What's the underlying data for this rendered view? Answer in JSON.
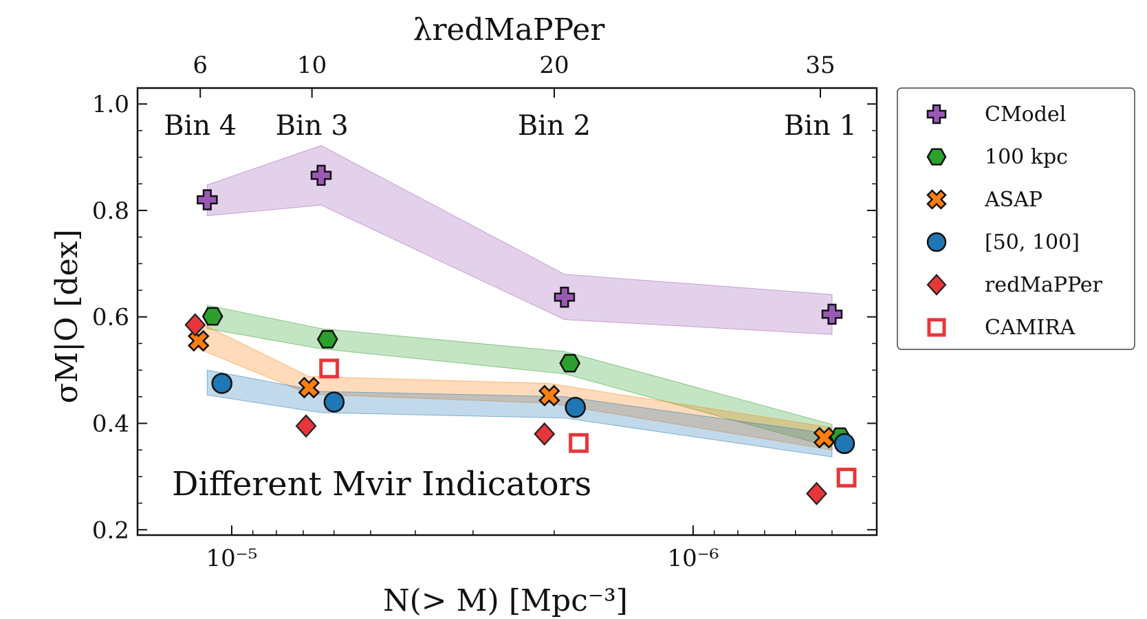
{
  "chart_data": {
    "type": "scatter",
    "x_axis": {
      "label": "N(> M) [Mpc⁻³]",
      "scale": "log",
      "reversed": true,
      "lim": [
        1.6e-05,
        4e-07
      ],
      "major_ticks": [
        {
          "value": 1e-05,
          "label": "10⁻⁵"
        },
        {
          "value": 1e-06,
          "label": "10⁻⁶"
        }
      ]
    },
    "top_axis": {
      "label": "λredMaPPer",
      "ticks": [
        {
          "x": 1.17e-05,
          "label": "6"
        },
        {
          "x": 6.7e-06,
          "label": "10"
        },
        {
          "x": 2e-06,
          "label": "20"
        },
        {
          "x": 5.3e-07,
          "label": "35"
        }
      ]
    },
    "y_axis": {
      "label": "σM|O [dex]",
      "lim": [
        0.19,
        1.03
      ],
      "ticks": [
        0.2,
        0.4,
        0.6,
        0.8,
        1.0
      ],
      "tick_labels": [
        "0.2",
        "0.4",
        "0.6",
        "0.8",
        "1.0"
      ]
    },
    "bin_labels": [
      {
        "label": "Bin 4",
        "x": 1.17e-05
      },
      {
        "label": "Bin 3",
        "x": 6.7e-06
      },
      {
        "label": "Bin 2",
        "x": 2e-06
      },
      {
        "label": "Bin 1",
        "x": 5.3e-07
      }
    ],
    "annotation": "Different Mvir Indicators",
    "legend_position": "outside right, top",
    "series": [
      {
        "name": "CModel",
        "marker": "plus",
        "color": "#9b59b6",
        "points": [
          [
            1.13e-05,
            0.82
          ],
          [
            6.4e-06,
            0.866
          ],
          [
            1.9e-06,
            0.637
          ],
          [
            5e-07,
            0.605
          ]
        ],
        "band": {
          "x": [
            1.13e-05,
            6.4e-06,
            1.9e-06,
            5e-07
          ],
          "low": [
            0.79,
            0.81,
            0.595,
            0.567
          ],
          "high": [
            0.848,
            0.922,
            0.68,
            0.642
          ]
        }
      },
      {
        "name": "100 kpc",
        "marker": "hexagon",
        "color": "#2ca02c",
        "points": [
          [
            1.1e-05,
            0.601
          ],
          [
            6.2e-06,
            0.558
          ],
          [
            1.85e-06,
            0.513
          ],
          [
            4.8e-07,
            0.375
          ]
        ],
        "band": {
          "x": [
            1.13e-05,
            6.4e-06,
            1.9e-06,
            5e-07
          ],
          "low": [
            0.578,
            0.54,
            0.493,
            0.355
          ],
          "high": [
            0.622,
            0.578,
            0.535,
            0.398
          ]
        }
      },
      {
        "name": "ASAP",
        "marker": "x",
        "color": "#ff7f0e",
        "points": [
          [
            1.18e-05,
            0.555
          ],
          [
            6.8e-06,
            0.467
          ],
          [
            2.05e-06,
            0.452
          ],
          [
            5.2e-07,
            0.373
          ]
        ],
        "band": {
          "x": [
            1.18e-05,
            6.8e-06,
            2.05e-06,
            5e-07
          ],
          "low": [
            0.54,
            0.455,
            0.438,
            0.35
          ],
          "high": [
            0.59,
            0.488,
            0.475,
            0.392
          ]
        }
      },
      {
        "name": "[50, 100]",
        "marker": "circle",
        "color": "#1f77b4",
        "points": [
          [
            1.05e-05,
            0.475
          ],
          [
            6e-06,
            0.44
          ],
          [
            1.8e-06,
            0.43
          ],
          [
            4.7e-07,
            0.362
          ]
        ],
        "band": {
          "x": [
            1.13e-05,
            6.4e-06,
            1.9e-06,
            5e-07
          ],
          "low": [
            0.453,
            0.42,
            0.41,
            0.337
          ],
          "high": [
            0.5,
            0.46,
            0.45,
            0.38
          ]
        }
      },
      {
        "name": "redMaPPer",
        "marker": "diamond",
        "color": "#e8363a",
        "points": [
          [
            1.2e-05,
            0.585
          ],
          [
            6.9e-06,
            0.395
          ],
          [
            2.1e-06,
            0.38
          ],
          [
            5.4e-07,
            0.268
          ]
        ]
      },
      {
        "name": "CAMIRA",
        "marker": "square",
        "color": "#e8363a",
        "points": [
          [
            6.15e-06,
            0.503
          ],
          [
            1.77e-06,
            0.363
          ],
          [
            4.65e-07,
            0.298
          ]
        ]
      }
    ]
  }
}
